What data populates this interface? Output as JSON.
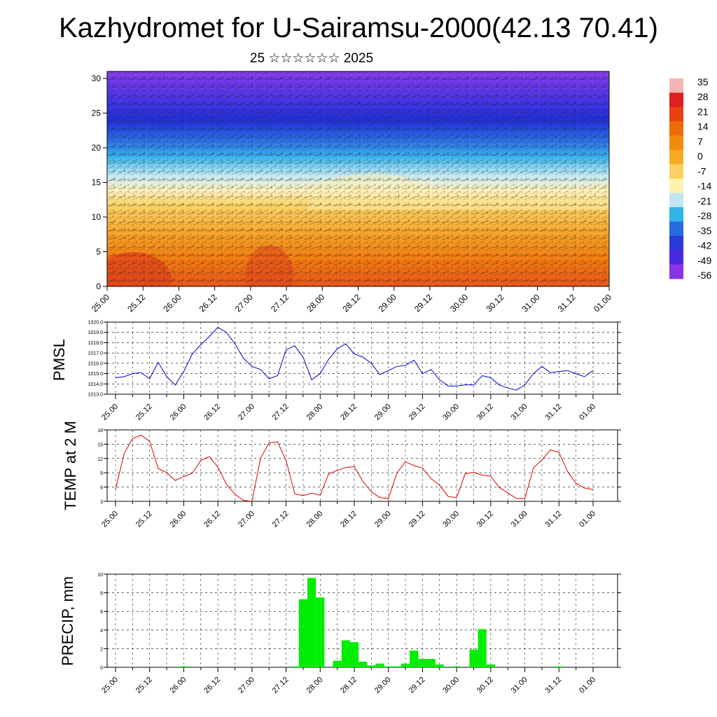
{
  "title": "Kazhydromet for U-Sairamsu-2000(42.13 70.41)",
  "subtitle": "25 ☆☆☆☆☆☆ 2025",
  "colors": {
    "pmsl_line": "#0000cc",
    "temp_line": "#dd0000",
    "precip_bar": "#00ee00"
  },
  "time_labels": [
    "25.00",
    "25.12",
    "26.00",
    "26.12",
    "27.00",
    "27.12",
    "28.00",
    "28.12",
    "29.00",
    "29.12",
    "30.00",
    "30.12",
    "31.00",
    "31.12",
    "01.00"
  ],
  "chart_data": [
    {
      "type": "heatmap",
      "ylim": [
        0,
        30
      ],
      "yticks": [
        0,
        5,
        10,
        15,
        20,
        25,
        30
      ],
      "colorbar": {
        "labels": [
          "35",
          "28",
          "21",
          "14",
          "7",
          "0",
          "-7",
          "-14",
          "-21",
          "-28",
          "-35",
          "-42",
          "-49",
          "-56"
        ],
        "colors": [
          "#f5b5b5",
          "#dd2020",
          "#e64010",
          "#ee6a08",
          "#f48a0a",
          "#f7aa20",
          "#fad060",
          "#fff2b0",
          "#bfe6f2",
          "#2fb4ea",
          "#2a6ae0",
          "#2a3ad6",
          "#4a2ae0",
          "#8a34e8"
        ]
      }
    },
    {
      "type": "line",
      "ylabel": "PMSL",
      "ylim": [
        1013.0,
        1020.0
      ],
      "yticks": [
        "1013.0",
        "1014.0",
        "1015.0",
        "1016.0",
        "1017.0",
        "1018.0",
        "1019.0",
        "1020.0"
      ],
      "series": [
        {
          "x": [
            1,
            2,
            3,
            4,
            5,
            6,
            7,
            8,
            9,
            10,
            11,
            12,
            13,
            14,
            15,
            16,
            17,
            18,
            19,
            20,
            21,
            22,
            23,
            24,
            25,
            26,
            27,
            28,
            29,
            30,
            31,
            32,
            33,
            34,
            35,
            36,
            37,
            38,
            39,
            40,
            41,
            42,
            43,
            44,
            45,
            46,
            47,
            48,
            49,
            50,
            51,
            52,
            53,
            54,
            55,
            56,
            57
          ],
          "values": [
            1014.6,
            1014.7,
            1015.0,
            1015.1,
            1014.5,
            1016.1,
            1014.7,
            1013.9,
            1015.2,
            1016.9,
            1017.8,
            1018.6,
            1019.5,
            1019.0,
            1017.9,
            1016.5,
            1015.7,
            1015.4,
            1014.5,
            1014.8,
            1017.3,
            1017.7,
            1016.6,
            1014.4,
            1015.0,
            1016.4,
            1017.4,
            1017.9,
            1016.9,
            1016.6,
            1016.0,
            1014.9,
            1015.3,
            1015.7,
            1015.8,
            1016.3,
            1015.0,
            1015.4,
            1014.4,
            1013.8,
            1013.8,
            1013.9,
            1013.9,
            1014.8,
            1014.6,
            1013.9,
            1013.6,
            1013.4,
            1013.9,
            1015.0,
            1015.7,
            1015.1,
            1015.2,
            1015.3,
            1015.0,
            1014.7,
            1015.3
          ]
        }
      ]
    },
    {
      "type": "line",
      "ylabel": "TEMP at 2 M",
      "ylim": [
        3,
        18
      ],
      "yticks": [
        "3",
        "6",
        "9",
        "12",
        "15",
        "18"
      ],
      "series": [
        {
          "x": [
            1,
            2,
            3,
            4,
            5,
            6,
            7,
            8,
            9,
            10,
            11,
            12,
            13,
            14,
            15,
            16,
            17,
            18,
            19,
            20,
            21,
            22,
            23,
            24,
            25,
            26,
            27,
            28,
            29,
            30,
            31,
            32,
            33,
            34,
            35,
            36,
            37,
            38,
            39,
            40,
            41,
            42,
            43,
            44,
            45,
            46,
            47,
            48,
            49,
            50,
            51,
            52,
            53,
            54,
            55,
            56,
            57
          ],
          "values": [
            5.5,
            13.0,
            16.2,
            16.9,
            15.6,
            9.9,
            9.0,
            7.4,
            8.2,
            8.9,
            11.6,
            12.4,
            10.2,
            6.6,
            4.5,
            3.2,
            3.0,
            12.0,
            15.3,
            15.5,
            11.6,
            4.6,
            4.2,
            4.7,
            4.3,
            8.8,
            9.5,
            10.1,
            10.3,
            7.2,
            5.0,
            3.8,
            3.6,
            9.0,
            11.3,
            10.5,
            10.0,
            7.8,
            6.4,
            4.0,
            3.8,
            8.8,
            9.1,
            8.5,
            8.3,
            5.9,
            4.8,
            3.6,
            3.6,
            10.0,
            11.7,
            13.8,
            13.3,
            9.3,
            6.8,
            5.8,
            5.5
          ]
        }
      ]
    },
    {
      "type": "bar",
      "ylabel": "PRECIP, mm",
      "ylim": [
        0,
        10
      ],
      "yticks": [
        "0",
        "2",
        "4",
        "6",
        "8",
        "10"
      ],
      "series": [
        {
          "x": [
            1,
            2,
            3,
            4,
            5,
            6,
            7,
            8,
            9,
            10,
            11,
            12,
            13,
            14,
            15,
            16,
            17,
            18,
            19,
            20,
            21,
            22,
            23,
            24,
            25,
            26,
            27,
            28,
            29,
            30,
            31,
            32,
            33,
            34,
            35,
            36,
            37,
            38,
            39,
            40,
            41,
            42,
            43,
            44,
            45,
            46,
            47,
            48,
            49,
            50,
            51,
            52,
            53,
            54,
            55,
            56,
            57
          ],
          "values": [
            0,
            0,
            0,
            0,
            0,
            0,
            0,
            0,
            0.1,
            0,
            0,
            0,
            0,
            0,
            0,
            0,
            0,
            0,
            0,
            0,
            0,
            0.1,
            7.3,
            9.6,
            7.5,
            0,
            0.7,
            2.9,
            2.7,
            0.6,
            0.2,
            0.4,
            0.1,
            0.1,
            0.4,
            1.8,
            0.9,
            0.9,
            0.3,
            0,
            0.1,
            0,
            1.9,
            4.1,
            0.3,
            0,
            0,
            0,
            0,
            0,
            0,
            0,
            0.1,
            0,
            0,
            0,
            0
          ]
        }
      ]
    }
  ]
}
